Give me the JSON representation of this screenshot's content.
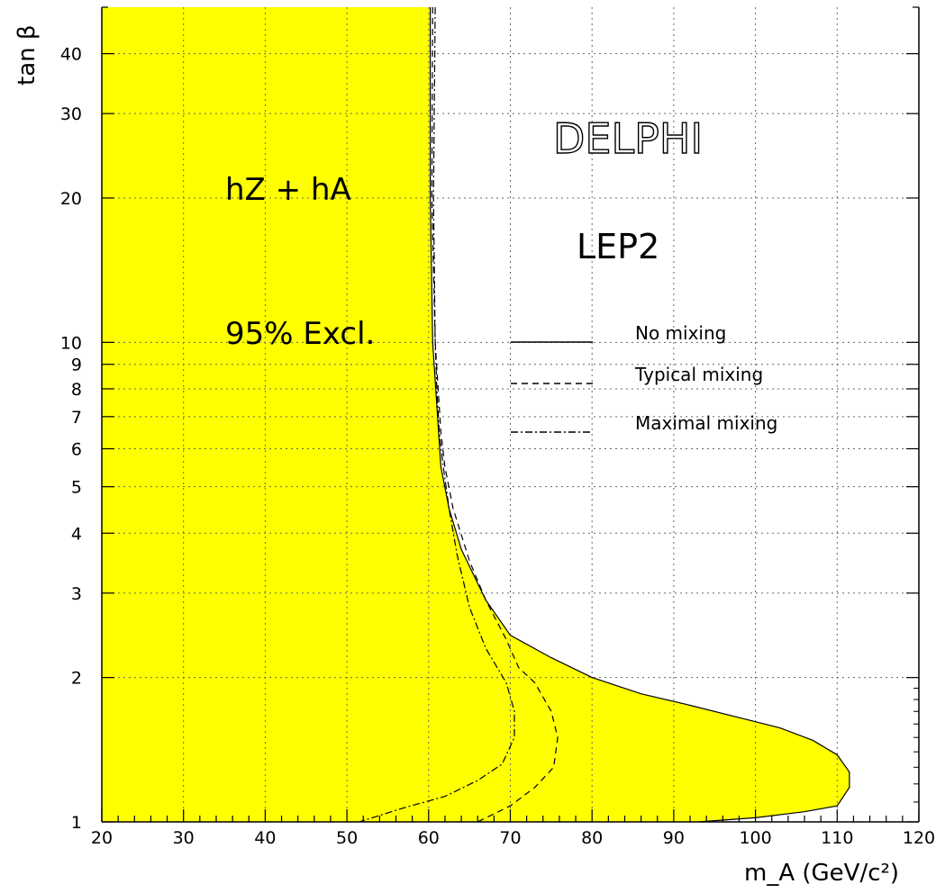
{
  "chart_data": {
    "type": "area",
    "xlabel": "m_A (GeV/c²)",
    "ylabel": "tan β",
    "xlim": [
      20,
      120
    ],
    "ylim": [
      1,
      50
    ],
    "yscale": "log",
    "xticks": [
      "20",
      "30",
      "40",
      "50",
      "60",
      "70",
      "80",
      "90",
      "100",
      "110",
      "120"
    ],
    "yticks": [
      "1",
      "2",
      "3",
      "4",
      "5",
      "6",
      "7",
      "8",
      "9",
      "10",
      "20",
      "30",
      "40"
    ],
    "ytick_values": [
      1,
      2,
      3,
      4,
      5,
      6,
      7,
      8,
      9,
      10,
      20,
      30,
      40
    ],
    "grid": true,
    "fill_color": "#ffff00",
    "annotations": {
      "process": "hZ + hA",
      "excl": "95% Excl.",
      "experiment": "DELPHI",
      "collider": "LEP2"
    },
    "series": [
      {
        "name": "No mixing",
        "style": "solid",
        "filled": true,
        "points": [
          [
            60.2,
            50
          ],
          [
            60.2,
            20
          ],
          [
            60.5,
            10
          ],
          [
            61.5,
            5.5
          ],
          [
            62.5,
            4.5
          ],
          [
            64,
            3.7
          ],
          [
            67,
            2.9
          ],
          [
            70,
            2.45
          ],
          [
            75,
            2.2
          ],
          [
            80,
            2.0
          ],
          [
            86,
            1.85
          ],
          [
            92,
            1.75
          ],
          [
            98,
            1.65
          ],
          [
            103,
            1.57
          ],
          [
            107,
            1.48
          ],
          [
            110,
            1.38
          ],
          [
            111.5,
            1.27
          ],
          [
            111.5,
            1.18
          ],
          [
            110,
            1.08
          ],
          [
            106,
            1.05
          ],
          [
            100,
            1.02
          ],
          [
            93,
            1.0
          ]
        ]
      },
      {
        "name": "Typical mixing",
        "style": "dashed",
        "points": [
          [
            60.5,
            50
          ],
          [
            60.4,
            20
          ],
          [
            60.8,
            10
          ],
          [
            61.5,
            6.5
          ],
          [
            62,
            5.5
          ],
          [
            63,
            4.5
          ],
          [
            65,
            3.5
          ],
          [
            67,
            2.9
          ],
          [
            69.5,
            2.4
          ],
          [
            71,
            2.1
          ],
          [
            73,
            1.95
          ],
          [
            75,
            1.7
          ],
          [
            75.8,
            1.5
          ],
          [
            75.3,
            1.3
          ],
          [
            73,
            1.18
          ],
          [
            70,
            1.08
          ],
          [
            66,
            1.0
          ]
        ]
      },
      {
        "name": "Maximal mixing",
        "style": "dashdot",
        "points": [
          [
            60.8,
            50
          ],
          [
            60.6,
            20
          ],
          [
            60.8,
            10
          ],
          [
            61,
            8
          ],
          [
            61.3,
            6.5
          ],
          [
            61.8,
            5.5
          ],
          [
            62.5,
            4.5
          ],
          [
            63.5,
            3.6
          ],
          [
            65,
            2.8
          ],
          [
            67,
            2.3
          ],
          [
            69.5,
            1.95
          ],
          [
            70.5,
            1.7
          ],
          [
            70.5,
            1.5
          ],
          [
            69,
            1.32
          ],
          [
            66,
            1.22
          ],
          [
            62,
            1.13
          ],
          [
            57,
            1.07
          ],
          [
            51.5,
            1.0
          ]
        ]
      }
    ]
  }
}
